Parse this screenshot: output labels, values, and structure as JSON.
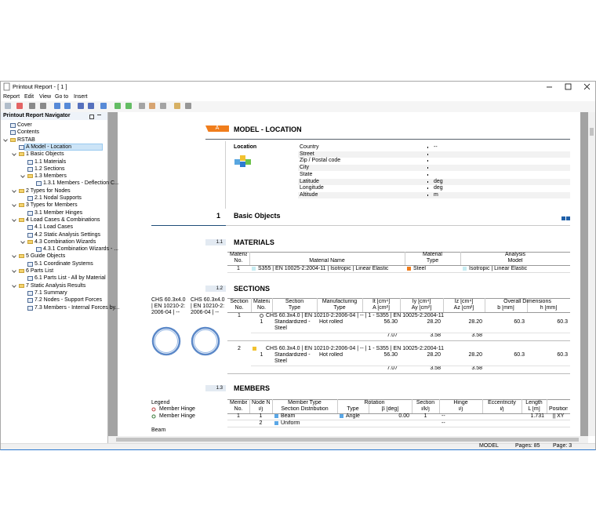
{
  "window": {
    "title": "Printout Report - [ 1 ]",
    "menu": [
      "Report",
      "Edit",
      "View",
      "Go to",
      "Insert"
    ],
    "status": {
      "mode": "MODEL",
      "pages": "Pages: 85",
      "page": "Page: 3"
    }
  },
  "navigator": {
    "title": "Printout Report Navigator",
    "items": [
      {
        "label": "Cover"
      },
      {
        "label": "Contents"
      },
      {
        "label": "RSTAB",
        "children": [
          {
            "label": "A Model - Location"
          },
          {
            "label": "1 Basic Objects",
            "children": [
              {
                "label": "1.1 Materials"
              },
              {
                "label": "1.2 Sections"
              },
              {
                "label": "1.3 Members",
                "children": [
                  {
                    "label": "1.3.1 Members - Deflection C..."
                  }
                ]
              }
            ]
          },
          {
            "label": "2 Types for Nodes",
            "children": [
              {
                "label": "2.1 Nodal Supports"
              }
            ]
          },
          {
            "label": "3 Types for Members",
            "children": [
              {
                "label": "3.1 Member Hinges"
              }
            ]
          },
          {
            "label": "4 Load Cases & Combinations",
            "children": [
              {
                "label": "4.1 Load Cases"
              },
              {
                "label": "4.2 Static Analysis Settings"
              },
              {
                "label": "4.3 Combination Wizards",
                "children": [
                  {
                    "label": "4.3.1 Combination Wizards - ..."
                  }
                ]
              }
            ]
          },
          {
            "label": "5 Guide Objects",
            "children": [
              {
                "label": "5.1 Coordinate Systems"
              }
            ]
          },
          {
            "label": "6 Parts List",
            "children": [
              {
                "label": "6.1 Parts List - All by Material"
              }
            ]
          },
          {
            "label": "7 Static Analysis Results",
            "children": [
              {
                "label": "7.1 Summary"
              },
              {
                "label": "7.2 Nodes - Support Forces"
              },
              {
                "label": "7.3 Members - Internal Forces by..."
              }
            ]
          }
        ]
      }
    ]
  },
  "report": {
    "model_location": {
      "badge": "A",
      "title": "MODEL - LOCATION",
      "label": "Location",
      "fields": [
        {
          "label": "Country",
          "value": "--"
        },
        {
          "label": "Street"
        },
        {
          "label": "Zip / Postal code"
        },
        {
          "label": "City"
        },
        {
          "label": "State"
        },
        {
          "label": "Latitude",
          "value": "deg"
        },
        {
          "label": "Longitude",
          "value": "deg"
        },
        {
          "label": "Altitude",
          "value": "m"
        }
      ]
    },
    "chapter": {
      "number": "1",
      "title": "Basic Objects"
    },
    "materials": {
      "number": "1.1",
      "title": "MATERIALS",
      "header": [
        [
          "Material",
          "No."
        ],
        [
          "Material Name"
        ],
        [
          "Material",
          "Type"
        ],
        [
          "Analysis",
          "Model"
        ]
      ],
      "rows": [
        [
          "1",
          "S355 | EN 10025-2:2004-11 | Isotropic | Linear Elastic",
          "Steel",
          "Isotropic | Linear Elastic"
        ]
      ]
    },
    "sections": {
      "number": "1.2",
      "title": "SECTIONS",
      "previews": [
        "CHS 60.3x4.0 | EN 10210-2:2006-04 | --",
        "CHS 60.3x4.0 | EN 10210-2:2006-04 | --"
      ],
      "header": [
        [
          "Section",
          "No."
        ],
        [
          "Material",
          "No."
        ],
        [
          "Section",
          "Type"
        ],
        [
          "Manufacturing",
          "Type"
        ],
        [
          "It [cm⁴]",
          "A [cm²]"
        ],
        [
          "Iy [cm⁴]",
          "Ay [cm²]"
        ],
        [
          "Iz [cm⁴]",
          "Az [cm²]"
        ],
        [
          "b [mm]"
        ],
        [
          "h [mm]"
        ]
      ],
      "group": "Overall Dimensions",
      "rows": [
        {
          "no": "1",
          "title": "CHS 60.3x4.0 | EN 10210-2:2006-04 | -- | 1 - S355 | EN 10025-2:2004-11",
          "material_row": [
            "1",
            "Standardized - Steel",
            "Hot rolled",
            "56.30",
            "28.20",
            "28.20",
            "60.3",
            "60.3"
          ],
          "area_row": [
            "7.07",
            "3.58",
            "3.58"
          ]
        },
        {
          "no": "2",
          "title": "CHS 60.3x4.0 | EN 10210-2:2006-04 | -- | 1 - S355 | EN 10025-2:2004-11",
          "material_row": [
            "1",
            "Standardized - Steel",
            "Hot rolled",
            "56.30",
            "28.20",
            "28.20",
            "60.3",
            "60.3"
          ],
          "area_row": [
            "7.07",
            "3.58",
            "3.58"
          ]
        }
      ]
    },
    "members": {
      "number": "1.3",
      "title": "MEMBERS",
      "legend": {
        "title": "Legend",
        "items": [
          "Member Hinge",
          "Member Hinge"
        ],
        "caption": "Beam"
      },
      "header": [
        [
          "Member",
          "No."
        ],
        [
          "Node No.",
          "i/j"
        ],
        [
          "Member Type",
          "Section Distribution"
        ],
        [
          "Type"
        ],
        [
          "β [deg]"
        ],
        [
          "Section",
          "i/k/j"
        ],
        [
          "Hinge",
          "i/j"
        ],
        [
          "Eccentricity",
          "i/j"
        ],
        [
          "Length",
          "L [m]"
        ],
        [
          "Position"
        ]
      ],
      "group": "Rotation",
      "rows": [
        [
          "1",
          "1",
          "Beam",
          "Angle",
          "0.00",
          "1",
          "--",
          null,
          "1.731",
          "|| XY"
        ],
        [
          null,
          "2",
          "Uniform",
          null,
          null,
          null,
          "--",
          null,
          null,
          null
        ]
      ]
    }
  }
}
